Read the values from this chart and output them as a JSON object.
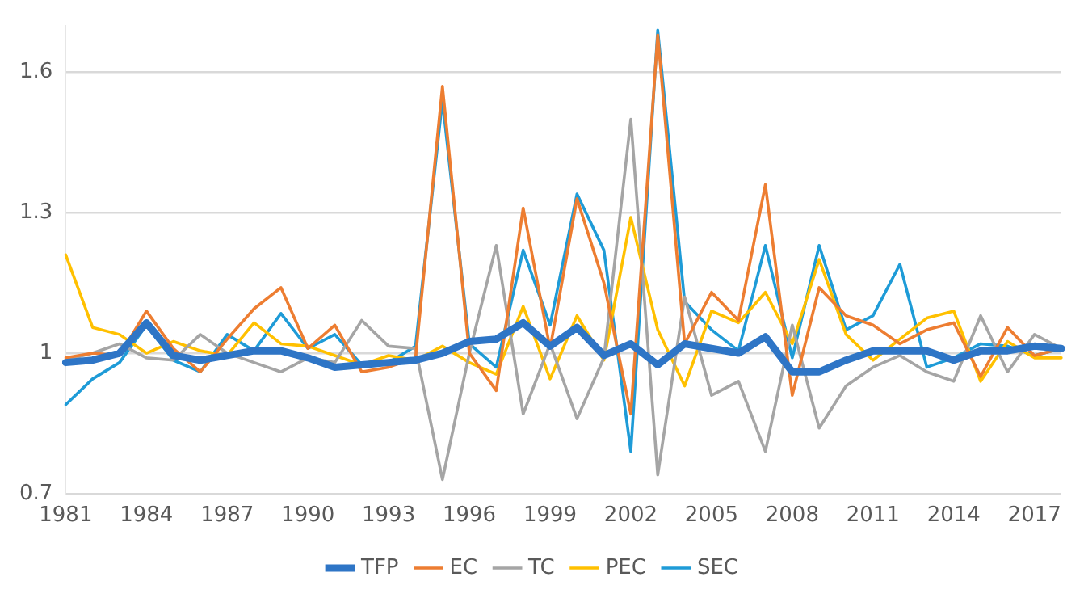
{
  "chart_data": {
    "type": "line",
    "categories": [
      "1981",
      null,
      null,
      "1984",
      null,
      null,
      "1987",
      null,
      null,
      "1990",
      null,
      null,
      "1993",
      null,
      null,
      "1996",
      null,
      null,
      "1999",
      null,
      null,
      "2002",
      null,
      null,
      "2005",
      null,
      null,
      "2008",
      null,
      null,
      "2011",
      null,
      null,
      "2014",
      null,
      null,
      "2017",
      null
    ],
    "ylim": [
      0.7,
      1.7
    ],
    "yticks": [
      0.7,
      1,
      1.3,
      1.6
    ],
    "grid": "y",
    "legend": "bottom",
    "marker": "none",
    "line_style": "solid",
    "series": [
      {
        "name": "TFP",
        "color": "#2e75c6",
        "values": [
          0.98,
          0.985,
          1.0,
          1.065,
          0.995,
          0.985,
          0.995,
          1.005,
          1.005,
          0.99,
          0.97,
          0.975,
          0.98,
          0.985,
          1.0,
          1.025,
          1.03,
          1.065,
          1.015,
          1.055,
          0.995,
          1.02,
          0.975,
          1.02,
          1.01,
          1.0,
          1.035,
          0.96,
          0.96,
          0.985,
          1.005,
          1.005,
          1.005,
          0.985,
          1.005,
          1.005,
          1.015,
          1.01
        ]
      },
      {
        "name": "EC",
        "color": "#ed7d31",
        "values": [
          0.99,
          1.0,
          0.995,
          1.09,
          1.01,
          0.96,
          1.03,
          1.095,
          1.14,
          1.01,
          1.06,
          0.96,
          0.97,
          0.99,
          1.57,
          1.0,
          0.92,
          1.31,
          1.01,
          1.33,
          1.15,
          0.87,
          1.68,
          1.02,
          1.13,
          1.07,
          1.36,
          0.91,
          1.14,
          1.08,
          1.06,
          1.02,
          1.05,
          1.065,
          0.95,
          1.055,
          0.995,
          1.01
        ]
      },
      {
        "name": "TC",
        "color": "#a5a5a5",
        "values": [
          0.985,
          1.0,
          1.02,
          0.99,
          0.985,
          1.04,
          1.0,
          0.98,
          0.96,
          0.99,
          0.98,
          1.07,
          1.015,
          1.01,
          0.73,
          1.0,
          1.23,
          0.87,
          1.02,
          0.86,
          0.99,
          1.5,
          0.74,
          1.12,
          0.91,
          0.94,
          0.79,
          1.06,
          0.84,
          0.93,
          0.97,
          0.995,
          0.96,
          0.94,
          1.08,
          0.96,
          1.04,
          1.01
        ]
      },
      {
        "name": "PEC",
        "color": "#ffc000",
        "values": [
          1.21,
          1.055,
          1.04,
          1.0,
          1.025,
          1.005,
          0.995,
          1.065,
          1.02,
          1.015,
          0.995,
          0.975,
          0.995,
          0.985,
          1.015,
          0.98,
          0.955,
          1.1,
          0.945,
          1.08,
          0.985,
          1.29,
          1.05,
          0.93,
          1.09,
          1.065,
          1.13,
          1.02,
          1.2,
          1.04,
          0.985,
          1.03,
          1.075,
          1.09,
          0.94,
          1.025,
          0.99,
          0.99
        ]
      },
      {
        "name": "SEC",
        "color": "#1e9bd7",
        "values": [
          0.89,
          0.945,
          0.98,
          1.06,
          0.985,
          0.96,
          1.04,
          1.005,
          1.085,
          1.01,
          1.04,
          0.975,
          0.98,
          1.015,
          1.54,
          1.02,
          0.97,
          1.22,
          1.06,
          1.34,
          1.22,
          0.79,
          1.69,
          1.11,
          1.05,
          1.005,
          1.23,
          0.99,
          1.23,
          1.05,
          1.08,
          1.19,
          0.97,
          0.99,
          1.02,
          1.015,
          0.995,
          1.01
        ]
      }
    ]
  }
}
